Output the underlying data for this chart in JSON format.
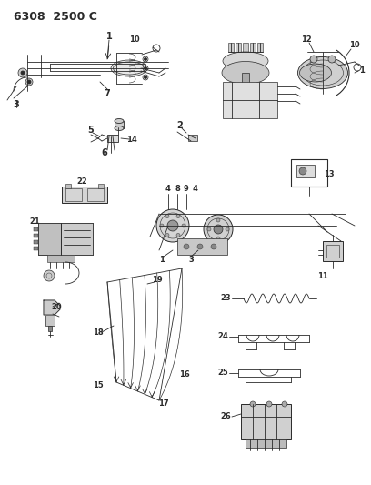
{
  "title": "6308  2500 C",
  "bg_color": "#ffffff",
  "line_color": "#2a2a2a",
  "title_fontsize": 9,
  "title_fontweight": "bold",
  "figsize": [
    4.08,
    5.33
  ],
  "dpi": 100
}
